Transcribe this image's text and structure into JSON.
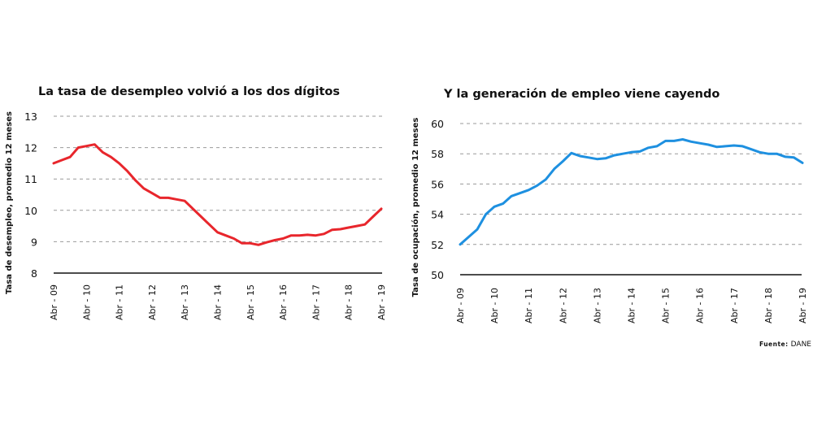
{
  "chart_data": [
    {
      "type": "line",
      "title": "La tasa de desempleo volvió a los dos dígitos",
      "ylabel": "Tasa de desempleo, promedio 12 meses",
      "xlabel": "",
      "ylim": [
        8,
        13
      ],
      "yticks": [
        8,
        9,
        10,
        11,
        12,
        13
      ],
      "xticks": [
        "Abr - 09",
        "Abr - 10",
        "Abr - 11",
        "Abr - 12",
        "Abr - 13",
        "Abr - 14",
        "Abr - 15",
        "Abr - 16",
        "Abr - 17",
        "Abr - 18",
        "Abr - 19"
      ],
      "grid": true,
      "color": "#e8262c",
      "x": [
        "2009-04",
        "2009-07",
        "2009-10",
        "2010-01",
        "2010-04",
        "2010-07",
        "2010-10",
        "2011-01",
        "2011-04",
        "2011-07",
        "2011-10",
        "2012-01",
        "2012-04",
        "2012-07",
        "2012-10",
        "2013-01",
        "2013-04",
        "2013-07",
        "2013-10",
        "2014-01",
        "2014-04",
        "2014-07",
        "2014-10",
        "2015-01",
        "2015-04",
        "2015-07",
        "2015-10",
        "2016-01",
        "2016-04",
        "2016-07",
        "2016-10",
        "2017-01",
        "2017-04",
        "2017-07",
        "2017-10",
        "2018-01",
        "2018-04",
        "2018-07",
        "2018-10",
        "2019-01",
        "2019-04"
      ],
      "values": [
        11.5,
        11.6,
        11.7,
        12.0,
        12.05,
        12.1,
        11.85,
        11.7,
        11.5,
        11.25,
        10.95,
        10.7,
        10.55,
        10.4,
        10.4,
        10.35,
        10.3,
        10.05,
        9.8,
        9.55,
        9.3,
        9.2,
        9.1,
        8.95,
        8.95,
        8.9,
        8.98,
        9.05,
        9.1,
        9.2,
        9.2,
        9.22,
        9.2,
        9.25,
        9.38,
        9.4,
        9.45,
        9.5,
        9.55,
        9.8,
        10.05
      ]
    },
    {
      "type": "line",
      "title": "Y la generación de empleo viene cayendo",
      "ylabel": "Tasa de ocupación, promedio 12 meses",
      "xlabel": "",
      "ylim": [
        50,
        60
      ],
      "yticks": [
        50,
        52,
        54,
        56,
        58,
        60
      ],
      "xticks": [
        "Abr - 09",
        "Abr - 10",
        "Abr - 11",
        "Abr - 12",
        "Abr - 13",
        "Abr - 14",
        "Abr - 15",
        "Abr - 16",
        "Abr - 17",
        "Abr - 18",
        "Abr - 19"
      ],
      "grid": true,
      "color": "#1e90e0",
      "x": [
        "2009-04",
        "2009-07",
        "2009-10",
        "2010-01",
        "2010-04",
        "2010-07",
        "2010-10",
        "2011-01",
        "2011-04",
        "2011-07",
        "2011-10",
        "2012-01",
        "2012-04",
        "2012-07",
        "2012-10",
        "2013-01",
        "2013-04",
        "2013-07",
        "2013-10",
        "2014-01",
        "2014-04",
        "2014-07",
        "2014-10",
        "2015-01",
        "2015-04",
        "2015-07",
        "2015-10",
        "2016-01",
        "2016-04",
        "2016-07",
        "2016-10",
        "2017-01",
        "2017-04",
        "2017-07",
        "2017-10",
        "2018-01",
        "2018-04",
        "2018-07",
        "2018-10",
        "2019-01",
        "2019-04"
      ],
      "values": [
        52.0,
        52.5,
        53.0,
        54.0,
        54.5,
        54.7,
        55.2,
        55.4,
        55.6,
        55.9,
        56.3,
        57.0,
        57.5,
        58.05,
        57.85,
        57.75,
        57.65,
        57.7,
        57.9,
        58.0,
        58.1,
        58.15,
        58.4,
        58.5,
        58.85,
        58.85,
        58.95,
        58.8,
        58.7,
        58.6,
        58.45,
        58.5,
        58.55,
        58.5,
        58.3,
        58.1,
        58.0,
        58.0,
        57.8,
        57.75,
        57.4
      ]
    }
  ],
  "source": {
    "label": "Fuente:",
    "value": "DANE"
  }
}
